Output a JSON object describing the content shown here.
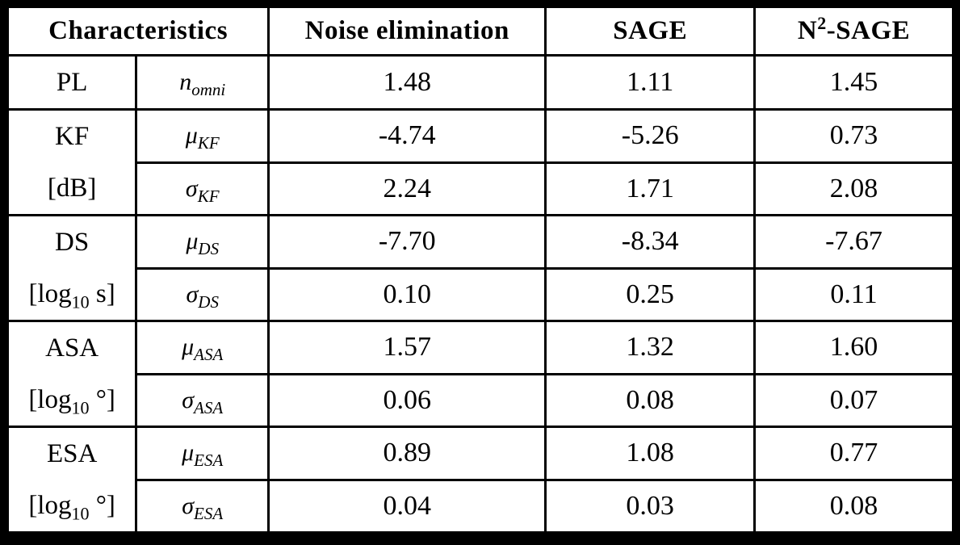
{
  "table": {
    "header": {
      "characteristics": "Characteristics",
      "noise_elimination": "Noise elimination",
      "sage": "SAGE",
      "n2_sage_base": "N",
      "n2_sage_sup": "2",
      "n2_sage_rest": "-SAGE"
    },
    "groups": [
      {
        "label_line1": "PL",
        "label2_pre": "",
        "label2_sub": "",
        "label2_post": "",
        "rows": [
          {
            "sym_base": "n",
            "sym_sub": "omni",
            "noise": "1.48",
            "sage": "1.11",
            "n2sage": "1.45"
          }
        ]
      },
      {
        "label_line1": "KF",
        "label2_pre": "[dB]",
        "label2_sub": "",
        "label2_post": "",
        "rows": [
          {
            "sym_base": "μ",
            "sym_sub": "KF",
            "noise": "-4.74",
            "sage": "-5.26",
            "n2sage": "0.73"
          },
          {
            "sym_base": "σ",
            "sym_sub": "KF",
            "noise": "2.24",
            "sage": "1.71",
            "n2sage": "2.08"
          }
        ]
      },
      {
        "label_line1": "DS",
        "label2_pre": "[log",
        "label2_sub": "10",
        "label2_post": " s]",
        "rows": [
          {
            "sym_base": "μ",
            "sym_sub": "DS",
            "noise": "-7.70",
            "sage": "-8.34",
            "n2sage": "-7.67"
          },
          {
            "sym_base": "σ",
            "sym_sub": "DS",
            "noise": "0.10",
            "sage": "0.25",
            "n2sage": "0.11"
          }
        ]
      },
      {
        "label_line1": "ASA",
        "label2_pre": "[log",
        "label2_sub": "10",
        "label2_post": " °]",
        "rows": [
          {
            "sym_base": "μ",
            "sym_sub": "ASA",
            "noise": "1.57",
            "sage": "1.32",
            "n2sage": "1.60"
          },
          {
            "sym_base": "σ",
            "sym_sub": "ASA",
            "noise": "0.06",
            "sage": "0.08",
            "n2sage": "0.07"
          }
        ]
      },
      {
        "label_line1": "ESA",
        "label2_pre": "[log",
        "label2_sub": "10",
        "label2_post": " °]",
        "rows": [
          {
            "sym_base": "μ",
            "sym_sub": "ESA",
            "noise": "0.89",
            "sage": "1.08",
            "n2sage": "0.77"
          },
          {
            "sym_base": "σ",
            "sym_sub": "ESA",
            "noise": "0.04",
            "sage": "0.03",
            "n2sage": "0.08"
          }
        ]
      }
    ],
    "colors": {
      "border": "#000000",
      "background": "#ffffff",
      "text": "#000000"
    }
  }
}
